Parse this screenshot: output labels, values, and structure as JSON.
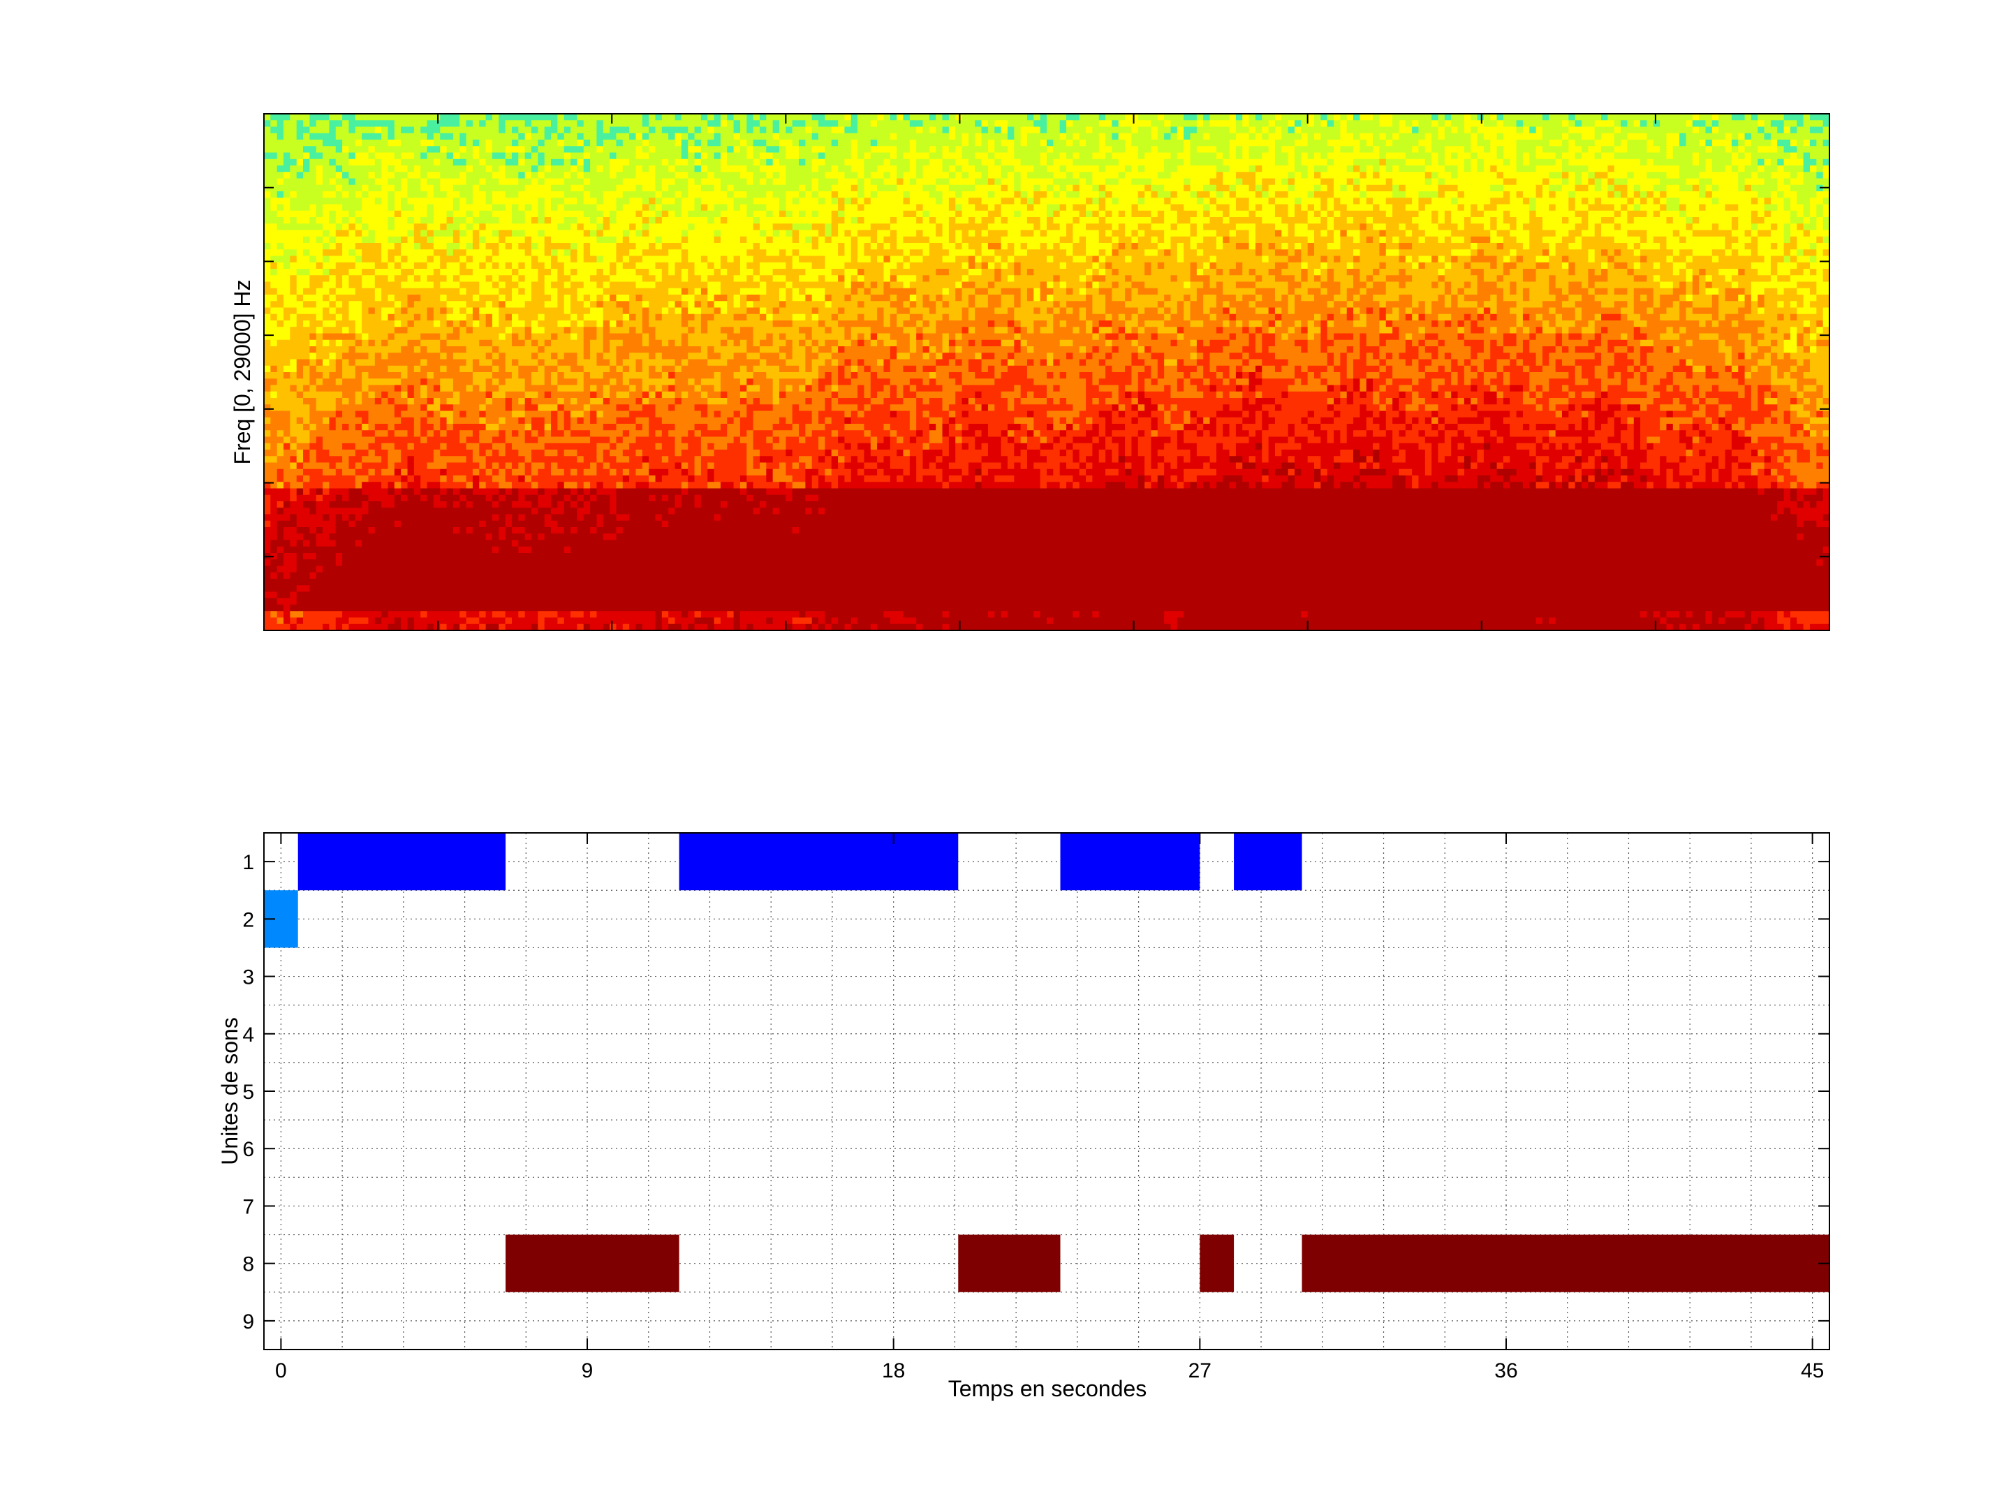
{
  "chart_data": [
    {
      "type": "heatmap",
      "title": "",
      "xlabel": "",
      "ylabel": "Freq [0, 29000] Hz",
      "colormap": [
        "#00c8e8",
        "#48f0a0",
        "#c8ff20",
        "#ffff00",
        "#ffc000",
        "#ff8000",
        "#ff3000",
        "#e00000",
        "#b00000"
      ],
      "description_note": "spectrogram intensity, high energy concentrated at low frequencies"
    },
    {
      "type": "heatmap",
      "title": "",
      "xlabel": "Temps en secondes",
      "ylabel": "Unites de sons",
      "xlim": [
        -0.5,
        45.5
      ],
      "ylim": [
        0.5,
        9.5
      ],
      "x_ticks": [
        0,
        9,
        18,
        27,
        36,
        45
      ],
      "x_tick_labels": [
        "0",
        "9",
        "18",
        "27",
        "36",
        "45"
      ],
      "y_ticks": [
        1,
        2,
        3,
        4,
        5,
        6,
        7,
        8,
        9
      ],
      "y_tick_labels": [
        "1",
        "2",
        "3",
        "4",
        "5",
        "6",
        "7",
        "8",
        "9"
      ],
      "grid": true,
      "grid_x_step": 1.8,
      "grid_y_step": 0.5,
      "segments": [
        {
          "unit": 2,
          "start": -0.5,
          "end": 0.5,
          "color": "#0088ff"
        },
        {
          "unit": 1,
          "start": 0.5,
          "end": 6.6,
          "color": "#0000ff"
        },
        {
          "unit": 8,
          "start": 6.6,
          "end": 11.7,
          "color": "#7f0000"
        },
        {
          "unit": 1,
          "start": 11.7,
          "end": 19.9,
          "color": "#0000ff"
        },
        {
          "unit": 8,
          "start": 19.9,
          "end": 22.9,
          "color": "#7f0000"
        },
        {
          "unit": 1,
          "start": 22.9,
          "end": 27.0,
          "color": "#0000ff"
        },
        {
          "unit": 8,
          "start": 27.0,
          "end": 28.0,
          "color": "#7f0000"
        },
        {
          "unit": 1,
          "start": 28.0,
          "end": 30.0,
          "color": "#0000ff"
        },
        {
          "unit": 8,
          "start": 30.0,
          "end": 45.5,
          "color": "#7f0000"
        }
      ]
    }
  ]
}
